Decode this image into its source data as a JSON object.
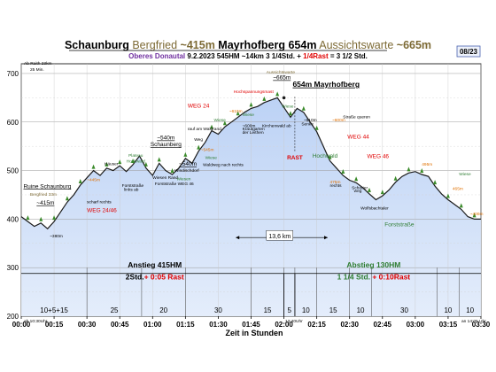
{
  "chart_data": {
    "type": "area",
    "page_badge": "08/23",
    "title_parts": [
      {
        "text": "Schaunburg",
        "color": "#000000",
        "weight": "bold"
      },
      {
        "text": " Bergfried",
        "color": "#7d6a35",
        "weight": "normal"
      },
      {
        "text": " ~415m",
        "color": "#7d6a35",
        "weight": "bold"
      },
      {
        "text": " Mayrhofberg 654m",
        "color": "#000000",
        "weight": "bold"
      },
      {
        "text": " Aussichtswarte",
        "color": "#7d6a35",
        "weight": "normal"
      },
      {
        "text": " ~665m",
        "color": "#7d6a35",
        "weight": "bold"
      }
    ],
    "subtitle_parts": [
      {
        "text": "Oberes Donautal",
        "color": "#7030a0",
        "weight": "bold"
      },
      {
        "text": "    9.2.2023    545HM    ~14km    3 1/4Std. + ",
        "color": "#000000",
        "weight": "bold"
      },
      {
        "text": "1/4Rast",
        "color": "#e00000",
        "weight": "bold"
      },
      {
        "text": " = 3 1/2 Std.",
        "color": "#000000",
        "weight": "bold"
      }
    ],
    "xlabel": "Zeit in Stunden",
    "x_tick_labels": [
      "00:00",
      "00:15",
      "00:30",
      "00:45",
      "01:00",
      "01:15",
      "01:30",
      "01:45",
      "02:00",
      "02:15",
      "02:30",
      "02:45",
      "03:00",
      "03:15",
      "03:30"
    ],
    "xlim": [
      0,
      210
    ],
    "ylim": [
      200,
      720
    ],
    "y_ticks": [
      200,
      300,
      400,
      500,
      600,
      700
    ],
    "grid": true,
    "corner_note_top": "Ab Raith 23km",
    "corner_note_top2": "25 Min.",
    "corner_note_left": "ab 10:30Uhr",
    "corner_note_mid": "12:40Uhr",
    "corner_note_right": "an 14:05 Uhr",
    "x": [
      0,
      3,
      6,
      9,
      12,
      15,
      18,
      21,
      24,
      27,
      30,
      33,
      36,
      39,
      42,
      45,
      48,
      51,
      54,
      57,
      60,
      63,
      66,
      69,
      72,
      75,
      78,
      81,
      84,
      87,
      90,
      93,
      96,
      99,
      102,
      105,
      108,
      111,
      114,
      117,
      120,
      123,
      126,
      129,
      132,
      135,
      138,
      141,
      144,
      147,
      150,
      153,
      156,
      159,
      162,
      165,
      168,
      171,
      174,
      177,
      180,
      183,
      186,
      189,
      192,
      195,
      198,
      201,
      204,
      207,
      210
    ],
    "elevation": [
      405,
      395,
      385,
      392,
      380,
      395,
      415,
      435,
      450,
      470,
      485,
      500,
      490,
      505,
      500,
      510,
      498,
      512,
      530,
      505,
      490,
      515,
      500,
      492,
      505,
      525,
      515,
      540,
      558,
      582,
      575,
      590,
      600,
      610,
      620,
      628,
      632,
      640,
      645,
      650,
      630,
      610,
      628,
      620,
      600,
      580,
      550,
      520,
      505,
      490,
      480,
      475,
      465,
      452,
      440,
      448,
      460,
      476,
      488,
      495,
      498,
      492,
      488,
      468,
      452,
      440,
      430,
      420,
      405,
      400,
      400
    ],
    "segments": [
      {
        "label": "10+5+15",
        "color": "#000000"
      },
      {
        "label": "25",
        "color": "#000000"
      },
      {
        "label": "20",
        "color": "#000000"
      },
      {
        "label": "30",
        "color": "#000000"
      },
      {
        "label": "15",
        "color": "#000000"
      },
      {
        "label": "5",
        "color": "#000000"
      },
      {
        "label": "10",
        "color": "#e00000"
      },
      {
        "label": "15",
        "color": "#000000"
      },
      {
        "label": "10",
        "color": "#000000"
      },
      {
        "label": "30",
        "color": "#000000"
      },
      {
        "label": "10",
        "color": "#000000"
      },
      {
        "label": "10",
        "color": "#000000"
      }
    ],
    "segment_bounds_min": [
      0,
      30,
      55,
      75,
      105,
      120,
      125,
      135,
      150,
      160,
      190,
      200,
      210
    ],
    "ascent_label": "Anstieg 415HM",
    "ascent_time": "2Std.",
    "ascent_rest": "+ 0:05 Rast",
    "descent_label": "Abstieg 130HM",
    "descent_time": "1 1/4 Std.",
    "descent_rest": "+ 0:10Rast",
    "rast_label": "RAST",
    "distance_label": "13,6 km",
    "annotations": [
      {
        "text": "Ruine Schaunburg",
        "x": 1,
        "y": 464,
        "color": "#000000",
        "cls": "t-place",
        "underline": true
      },
      {
        "text": "Bergfried 33m",
        "x": 4,
        "y": 448,
        "color": "#7d6a35",
        "cls": "t-note"
      },
      {
        "text": "~415m",
        "x": 7,
        "y": 430,
        "color": "#000000",
        "cls": "t-place",
        "underline": true
      },
      {
        "text": "~380m",
        "x": 13,
        "y": 362,
        "color": "#000000",
        "cls": "t-note"
      },
      {
        "text": "scharf rechts",
        "x": 30,
        "y": 433,
        "color": "#000000",
        "cls": "t-note"
      },
      {
        "text": "WEG 24/46",
        "x": 30,
        "y": 414,
        "color": "#e00000",
        "cls": "t-place"
      },
      {
        "text": "~445m",
        "x": 30,
        "y": 478,
        "color": "#e07000",
        "cls": "t-note"
      },
      {
        "text": "Häuser",
        "x": 38,
        "y": 511,
        "color": "#000000",
        "cls": "t-note"
      },
      {
        "text": "Plateau",
        "x": 49,
        "y": 528,
        "color": "#2e7d32",
        "cls": "t-note"
      },
      {
        "text": "Hochwald",
        "x": 48,
        "y": 517,
        "color": "#2e7d32",
        "cls": "t-note"
      },
      {
        "text": "~540m",
        "x": 62,
        "y": 564,
        "color": "#000000",
        "cls": "t-place",
        "underline": true
      },
      {
        "text": "Schaunberg",
        "x": 59,
        "y": 550,
        "color": "#000000",
        "cls": "t-place",
        "underline": true
      },
      {
        "text": "Forststraße",
        "x": 46,
        "y": 466,
        "color": "#000000",
        "cls": "t-note"
      },
      {
        "text": "links ab",
        "x": 47,
        "y": 458,
        "color": "#000000",
        "cls": "t-note"
      },
      {
        "text": "Wiesen Rand",
        "x": 60,
        "y": 483,
        "color": "#000000",
        "cls": "t-note"
      },
      {
        "text": "Forststraße WEG 46",
        "x": 61,
        "y": 470,
        "color": "#000000",
        "cls": "t-note"
      },
      {
        "text": "~540m",
        "x": 72,
        "y": 510,
        "color": "#000000",
        "cls": "t-place",
        "underline": true
      },
      {
        "text": "Windischdorf",
        "x": 70,
        "y": 497,
        "color": "#000000",
        "cls": "t-note"
      },
      {
        "text": "Wiesen",
        "x": 71,
        "y": 480,
        "color": "#2e7d32",
        "cls": "t-note"
      },
      {
        "text": "rauf am Waldrand",
        "x": 76,
        "y": 583,
        "color": "#000000",
        "cls": "t-note"
      },
      {
        "text": "~545m",
        "x": 82,
        "y": 540,
        "color": "#e07000",
        "cls": "t-note"
      },
      {
        "text": "WEG 24",
        "x": 76,
        "y": 630,
        "color": "#e00000",
        "cls": "t-place"
      },
      {
        "text": "Weg",
        "x": 79,
        "y": 561,
        "color": "#000000",
        "cls": "t-note"
      },
      {
        "text": "Wiese",
        "x": 84,
        "y": 524,
        "color": "#2e7d32",
        "cls": "t-note"
      },
      {
        "text": "Waldweg nach rechts",
        "x": 83,
        "y": 509,
        "color": "#000000",
        "cls": "t-note"
      },
      {
        "text": "Wiese",
        "x": 88,
        "y": 601,
        "color": "#2e7d32",
        "cls": "t-note"
      },
      {
        "text": "~610m",
        "x": 95,
        "y": 620,
        "color": "#e07000",
        "cls": "t-note"
      },
      {
        "text": "Hochspannungsmast",
        "x": 97,
        "y": 660,
        "color": "#e00000",
        "cls": "t-note"
      },
      {
        "text": "Wiese",
        "x": 101,
        "y": 612,
        "color": "#2e7d32",
        "cls": "t-note"
      },
      {
        "text": "~600m",
        "x": 101,
        "y": 590,
        "color": "#000000",
        "cls": "t-note"
      },
      {
        "text": "Krautgarten",
        "x": 101,
        "y": 583,
        "color": "#000000",
        "cls": "t-note"
      },
      {
        "text": "der Leithen",
        "x": 101,
        "y": 576,
        "color": "#000000",
        "cls": "t-note"
      },
      {
        "text": "Kirchenwald ab",
        "x": 110,
        "y": 590,
        "color": "#000000",
        "cls": "t-note"
      },
      {
        "text": "Aussichtswarte",
        "x": 112,
        "y": 700,
        "color": "#7d6a35",
        "cls": "t-note"
      },
      {
        "text": "~665m",
        "x": 115,
        "y": 688,
        "color": "#000000",
        "cls": "t-place",
        "underline": true
      },
      {
        "text": "654m Mayrhofberg",
        "x": 124,
        "y": 673,
        "color": "#000000",
        "cls": "t-big",
        "underline": true
      },
      {
        "text": "Wiese",
        "x": 119,
        "y": 630,
        "color": "#2e7d32",
        "cls": "t-note"
      },
      {
        "text": "~610m",
        "x": 129,
        "y": 601,
        "color": "#000000",
        "cls": "t-note"
      },
      {
        "text": "Senke",
        "x": 128,
        "y": 593,
        "color": "#000000",
        "cls": "t-note"
      },
      {
        "text": "~600m",
        "x": 142,
        "y": 601,
        "color": "#e07000",
        "cls": "t-note"
      },
      {
        "text": "Hochwald",
        "x": 133,
        "y": 527,
        "color": "#2e7d32",
        "cls": "t-place"
      },
      {
        "text": "WEG 44",
        "x": 149,
        "y": 566,
        "color": "#e00000",
        "cls": "t-place"
      },
      {
        "text": "Straße queren",
        "x": 147,
        "y": 608,
        "color": "#000000",
        "cls": "t-note"
      },
      {
        "text": "475m",
        "x": 141,
        "y": 474,
        "color": "#e07000",
        "cls": "t-note"
      },
      {
        "text": "rechts",
        "x": 141,
        "y": 466,
        "color": "#000000",
        "cls": "t-note"
      },
      {
        "text": "WEG 46",
        "x": 158,
        "y": 526,
        "color": "#e00000",
        "cls": "t-place"
      },
      {
        "text": "Schotter",
        "x": 151,
        "y": 462,
        "color": "#000000",
        "cls": "t-note"
      },
      {
        "text": "weg",
        "x": 152,
        "y": 455,
        "color": "#000000",
        "cls": "t-note"
      },
      {
        "text": "Wolfsbachtaler",
        "x": 155,
        "y": 420,
        "color": "#000000",
        "cls": "t-note"
      },
      {
        "text": "Forststraße",
        "x": 166,
        "y": 385,
        "color": "#2e7d32",
        "cls": "t-place"
      },
      {
        "text": "495m",
        "x": 183,
        "y": 510,
        "color": "#e07000",
        "cls": "t-note"
      },
      {
        "text": "Wiese",
        "x": 200,
        "y": 490,
        "color": "#2e7d32",
        "cls": "t-note"
      },
      {
        "text": "465m",
        "x": 197,
        "y": 460,
        "color": "#e07000",
        "cls": "t-note"
      },
      {
        "text": "~400m",
        "x": 205,
        "y": 408,
        "color": "#e07000",
        "cls": "t-note"
      }
    ]
  }
}
